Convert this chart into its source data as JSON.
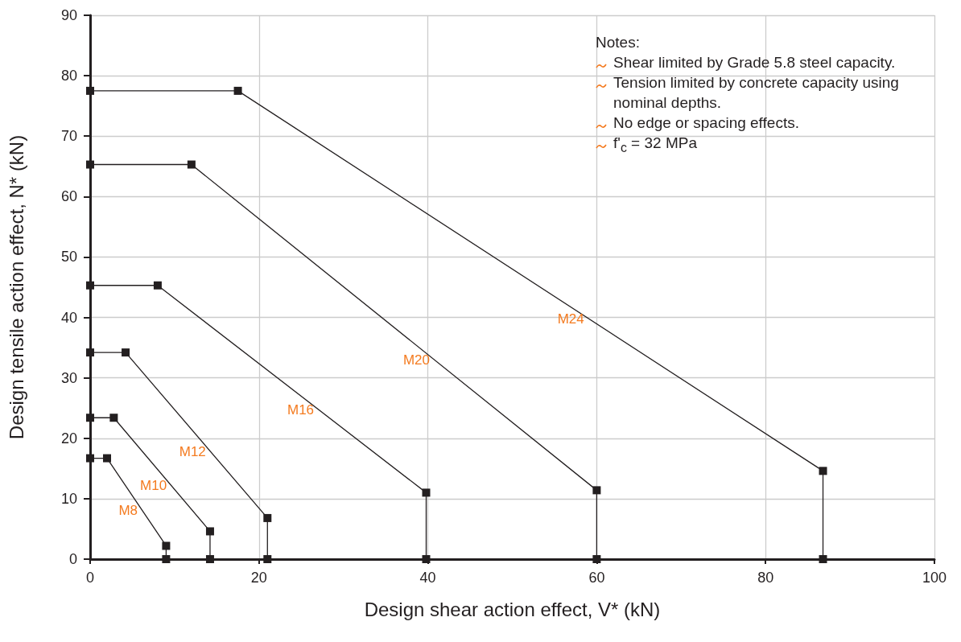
{
  "chart_data": {
    "type": "line",
    "xlabel": "Design shear action effect, V* (kN)",
    "ylabel": "Design tensile action effect, N* (kN)",
    "xlim": [
      0,
      100
    ],
    "xticks": [
      0,
      20,
      40,
      60,
      80,
      100
    ],
    "ylim": [
      0,
      90
    ],
    "yticks": [
      0,
      10,
      20,
      30,
      40,
      50,
      60,
      70,
      80,
      90
    ],
    "grid": true,
    "legend": false,
    "marker": "square",
    "line_style": "solid",
    "series": [
      {
        "name": "M8",
        "color": "#231f20",
        "x": [
          0,
          2,
          9,
          9
        ],
        "values": [
          16.7,
          16.7,
          2.2,
          0
        ]
      },
      {
        "name": "M10",
        "color": "#231f20",
        "x": [
          0,
          2.8,
          14.2,
          14.2
        ],
        "values": [
          23.4,
          23.4,
          4.6,
          0
        ]
      },
      {
        "name": "M12",
        "color": "#231f20",
        "x": [
          0,
          4.2,
          21,
          21
        ],
        "values": [
          34.2,
          34.2,
          6.8,
          0
        ]
      },
      {
        "name": "M16",
        "color": "#231f20",
        "x": [
          0,
          8,
          39.8,
          39.8
        ],
        "values": [
          45.3,
          45.3,
          11,
          0
        ]
      },
      {
        "name": "M20",
        "color": "#231f20",
        "x": [
          0,
          12,
          60,
          60
        ],
        "values": [
          65.3,
          65.3,
          11.4,
          0
        ]
      },
      {
        "name": "M24",
        "color": "#231f20",
        "x": [
          0,
          17.5,
          86.8,
          86.8
        ],
        "values": [
          77.5,
          77.5,
          14.6,
          0
        ]
      }
    ],
    "annotations": [
      "Notes:",
      "Shear limited by Grade 5.8 steel capacity.",
      "Tension limited by concrete capacity using nominal depths.",
      "No edge or spacing effects.",
      "f'$_{c}$ = 32 MPa"
    ]
  }
}
